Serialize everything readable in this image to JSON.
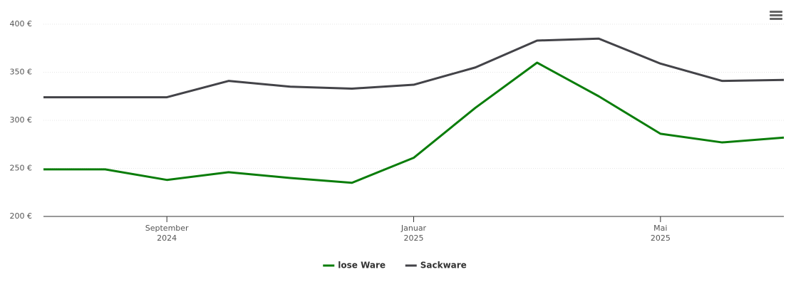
{
  "chart_data": {
    "type": "line",
    "x": [
      "2024-07",
      "2024-08",
      "2024-09",
      "2024-10",
      "2024-11",
      "2024-12",
      "2025-01",
      "2025-02",
      "2025-03",
      "2025-04",
      "2025-05",
      "2025-06",
      "2025-07"
    ],
    "series": [
      {
        "name": "lose Ware",
        "color": "#0a7d0a",
        "values": [
          249,
          249,
          238,
          246,
          240,
          235,
          261,
          313,
          360,
          325,
          286,
          277,
          282
        ]
      },
      {
        "name": "Sackware",
        "color": "#434348",
        "values": [
          324,
          324,
          324,
          341,
          335,
          333,
          337,
          355,
          383,
          385,
          359,
          341,
          342
        ]
      }
    ],
    "xlim": [
      "2024-07",
      "2025-07"
    ],
    "xticks": [
      {
        "value": "2024-09",
        "label": [
          "September",
          "2024"
        ]
      },
      {
        "value": "2025-01",
        "label": [
          "Januar",
          "2025"
        ]
      },
      {
        "value": "2025-05",
        "label": [
          "Mai",
          "2025"
        ]
      }
    ],
    "ylim": [
      200,
      400
    ],
    "yticks": [
      {
        "value": 200,
        "label": "200 €"
      },
      {
        "value": 250,
        "label": "250 €"
      },
      {
        "value": 300,
        "label": "300 €"
      },
      {
        "value": 350,
        "label": "350 €"
      },
      {
        "value": 400,
        "label": "400 €"
      }
    ],
    "grid": true,
    "legend": "bottom"
  }
}
